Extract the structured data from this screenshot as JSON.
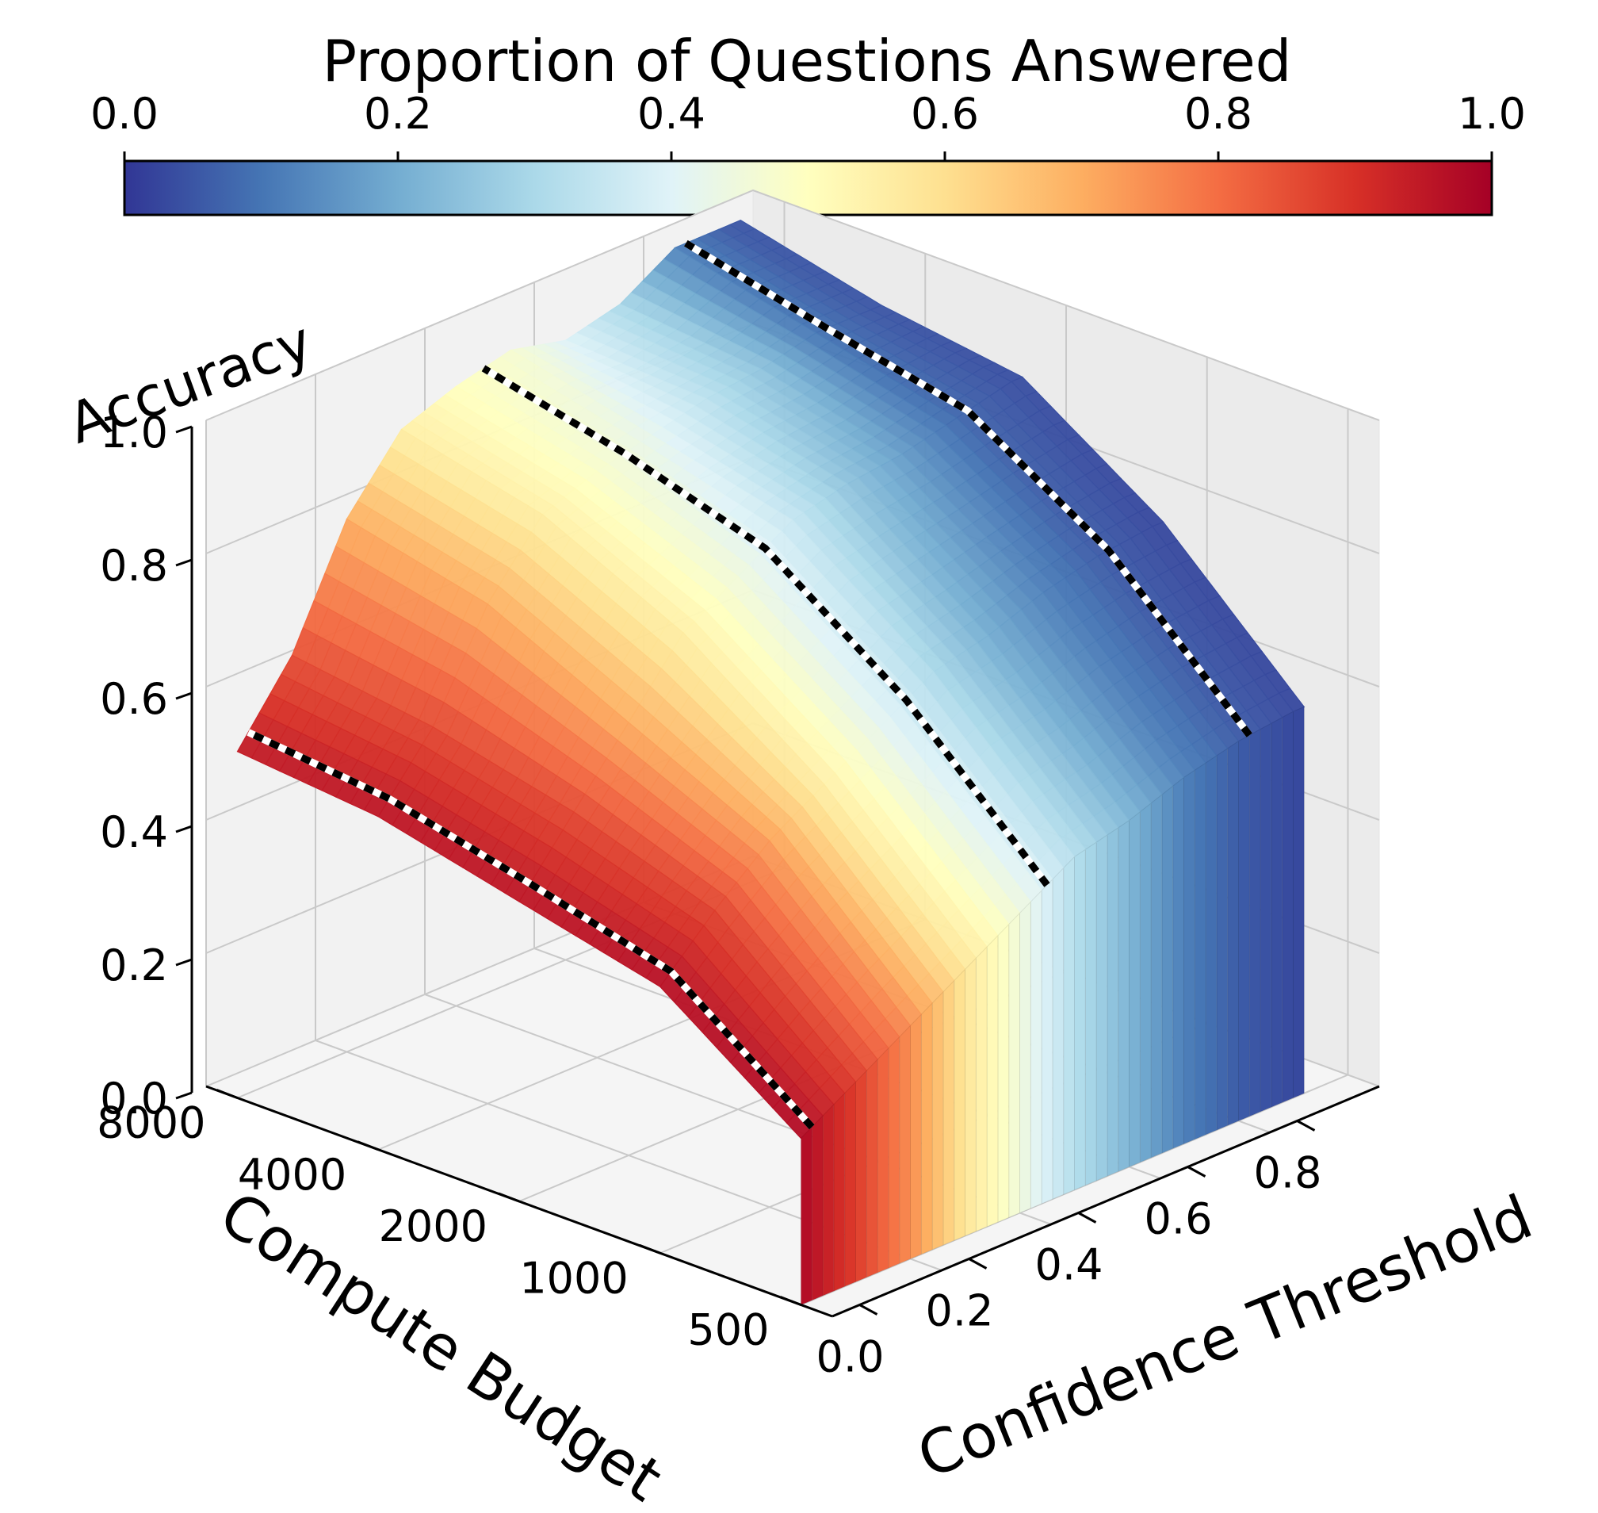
{
  "chart_data": {
    "type": "surface3d",
    "title": "",
    "colorbar": {
      "label": "Proportion of Questions Answered",
      "ticks": [
        "0.0",
        "0.2",
        "0.4",
        "0.6",
        "0.8",
        "1.0"
      ],
      "range": [
        0,
        1
      ],
      "colormap": "RdYlBu_r",
      "stops": [
        "#313695",
        "#4575b4",
        "#74add1",
        "#abd9e9",
        "#e0f3f8",
        "#ffffbf",
        "#fee090",
        "#fdae61",
        "#f46d43",
        "#d73027",
        "#a50026"
      ]
    },
    "x_axis": {
      "label": "Confidence Threshold",
      "range": [
        0,
        1
      ],
      "ticks": [
        "0.0",
        "0.2",
        "0.4",
        "0.6",
        "0.8"
      ]
    },
    "y_axis": {
      "label": "Compute Budget",
      "ticks": [
        "500",
        "1000",
        "2000",
        "4000",
        "8000"
      ]
    },
    "z_axis": {
      "label": "Accuracy",
      "range": [
        0,
        1
      ],
      "ticks": [
        "0.0",
        "0.2",
        "0.4",
        "0.6",
        "0.8",
        "1.0"
      ]
    },
    "compute_budgets": [
      500,
      1000,
      2000,
      4000,
      8000
    ],
    "series": [
      {
        "name": "Compute Budget 8000",
        "threshold": [
          0.0,
          0.1,
          0.2,
          0.3,
          0.4,
          0.5,
          0.6,
          0.7,
          0.8,
          0.9
        ],
        "accuracy": [
          0.52,
          0.63,
          0.8,
          0.9,
          0.93,
          0.95,
          0.93,
          0.95,
          1.0,
          1.0
        ],
        "proportion_answered": [
          0.95,
          0.85,
          0.7,
          0.55,
          0.5,
          0.47,
          0.4,
          0.3,
          0.12,
          0.05
        ]
      },
      {
        "name": "Compute Budget 4000",
        "threshold": [
          0.0,
          0.1,
          0.2,
          0.3,
          0.4,
          0.5,
          0.6,
          0.7,
          0.8,
          0.9
        ],
        "accuracy": [
          0.5,
          0.6,
          0.75,
          0.85,
          0.88,
          0.9,
          0.92,
          0.93,
          0.95,
          0.95
        ],
        "proportion_answered": [
          0.96,
          0.86,
          0.7,
          0.55,
          0.48,
          0.42,
          0.33,
          0.25,
          0.1,
          0.05
        ]
      },
      {
        "name": "Compute Budget 2000",
        "threshold": [
          0.0,
          0.1,
          0.2,
          0.3,
          0.4,
          0.5,
          0.6,
          0.7,
          0.8,
          0.9
        ],
        "accuracy": [
          0.45,
          0.55,
          0.65,
          0.75,
          0.8,
          0.85,
          0.87,
          0.88,
          0.9,
          0.92
        ],
        "proportion_answered": [
          0.96,
          0.86,
          0.7,
          0.55,
          0.45,
          0.35,
          0.25,
          0.17,
          0.08,
          0.04
        ]
      },
      {
        "name": "Compute Budget 1000",
        "threshold": [
          0.0,
          0.1,
          0.2,
          0.3,
          0.4,
          0.5,
          0.6,
          0.7,
          0.8,
          0.9
        ],
        "accuracy": [
          0.4,
          0.48,
          0.55,
          0.6,
          0.65,
          0.7,
          0.72,
          0.75,
          0.77,
          0.78
        ],
        "proportion_answered": [
          0.97,
          0.87,
          0.72,
          0.55,
          0.42,
          0.3,
          0.2,
          0.12,
          0.06,
          0.03
        ]
      },
      {
        "name": "Compute Budget 500",
        "threshold": [
          0.0,
          0.1,
          0.2,
          0.3,
          0.4,
          0.5,
          0.6,
          0.7,
          0.8,
          0.9
        ],
        "accuracy": [
          0.25,
          0.3,
          0.35,
          0.4,
          0.45,
          0.5,
          0.52,
          0.55,
          0.57,
          0.58
        ],
        "proportion_answered": [
          0.98,
          0.88,
          0.75,
          0.58,
          0.45,
          0.32,
          0.22,
          0.12,
          0.06,
          0.03
        ]
      }
    ],
    "annotations": [
      "dashed outline at accuracy ridge across compute budgets"
    ]
  }
}
